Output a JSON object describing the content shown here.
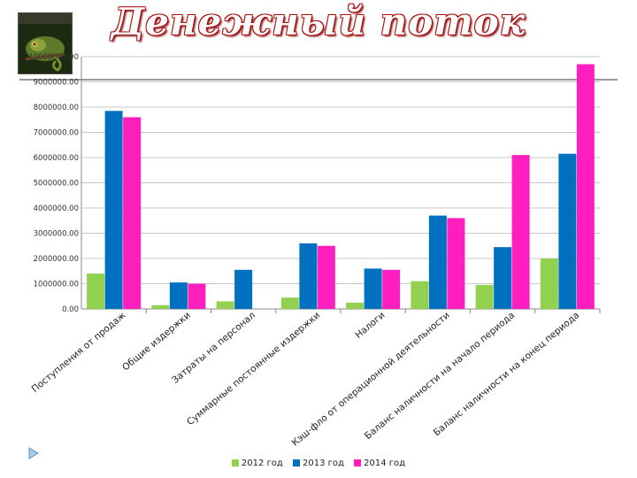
{
  "slide": {
    "title": "Денежный поток"
  },
  "colors": {
    "title_red": "#b01010",
    "grid": "#c8c8c8",
    "axis": "#888888"
  },
  "chart_data": {
    "type": "bar",
    "categories": [
      "Поступления от продаж",
      "Общие издержки",
      "Затраты на персонал",
      "Суммарные постоянные издержки",
      "Налоги",
      "Кэш-фло от операционной деятельности",
      "Баланс наличности на начало периода",
      "Баланс наличности на конец периода"
    ],
    "series": [
      {
        "name": "2012 год",
        "color": "#92d050",
        "values": [
          1400000,
          150000,
          300000,
          450000,
          250000,
          1100000,
          950000,
          2000000
        ]
      },
      {
        "name": "2013 год",
        "color": "#0070c0",
        "values": [
          7850000,
          1050000,
          1550000,
          2600000,
          1600000,
          3700000,
          2450000,
          6150000
        ]
      },
      {
        "name": "2014 год",
        "color": "#ff1fbf",
        "values": [
          7600000,
          1000000,
          0,
          2500000,
          1550000,
          3600000,
          6100000,
          9700000
        ]
      }
    ],
    "yticks": [
      "0.00",
      "1000000.00",
      "2000000.00",
      "3000000.00",
      "4000000.00",
      "5000000.00",
      "6000000.00",
      "7000000.00",
      "8000000.00",
      "9000000.00",
      "10000000.00"
    ],
    "ylim": [
      0,
      10000000
    ],
    "grid": true,
    "legend_position": "bottom"
  }
}
